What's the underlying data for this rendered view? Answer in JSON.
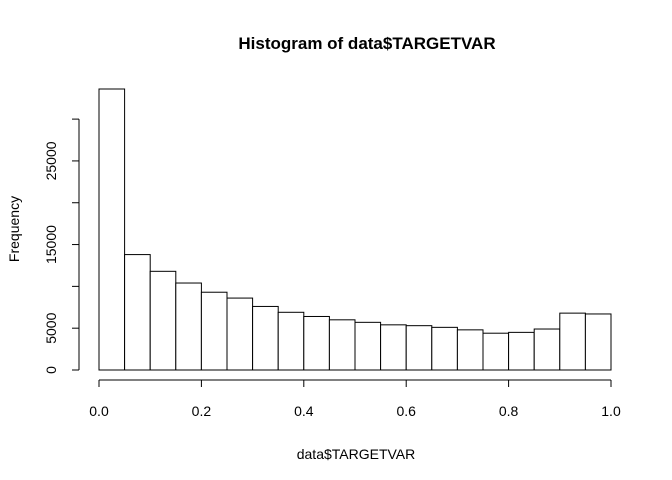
{
  "chart_data": {
    "type": "bar",
    "title": "Histogram of data$TARGETVAR",
    "xlabel": "data$TARGETVAR",
    "ylabel": "Frequency",
    "bin_width": 0.05,
    "bins": [
      {
        "x0": 0.0,
        "x1": 0.05,
        "count": 33600
      },
      {
        "x0": 0.05,
        "x1": 0.1,
        "count": 13800
      },
      {
        "x0": 0.1,
        "x1": 0.15,
        "count": 11800
      },
      {
        "x0": 0.15,
        "x1": 0.2,
        "count": 10400
      },
      {
        "x0": 0.2,
        "x1": 0.25,
        "count": 9300
      },
      {
        "x0": 0.25,
        "x1": 0.3,
        "count": 8600
      },
      {
        "x0": 0.3,
        "x1": 0.35,
        "count": 7600
      },
      {
        "x0": 0.35,
        "x1": 0.4,
        "count": 6900
      },
      {
        "x0": 0.4,
        "x1": 0.45,
        "count": 6400
      },
      {
        "x0": 0.45,
        "x1": 0.5,
        "count": 6000
      },
      {
        "x0": 0.5,
        "x1": 0.55,
        "count": 5700
      },
      {
        "x0": 0.55,
        "x1": 0.6,
        "count": 5400
      },
      {
        "x0": 0.6,
        "x1": 0.65,
        "count": 5300
      },
      {
        "x0": 0.65,
        "x1": 0.7,
        "count": 5100
      },
      {
        "x0": 0.7,
        "x1": 0.75,
        "count": 4800
      },
      {
        "x0": 0.75,
        "x1": 0.8,
        "count": 4400
      },
      {
        "x0": 0.8,
        "x1": 0.85,
        "count": 4500
      },
      {
        "x0": 0.85,
        "x1": 0.9,
        "count": 4900
      },
      {
        "x0": 0.9,
        "x1": 0.95,
        "count": 6800
      },
      {
        "x0": 0.95,
        "x1": 1.0,
        "count": 6700
      }
    ],
    "xlim": [
      0.0,
      1.0
    ],
    "ylim": [
      0,
      33600
    ],
    "x_ticks": [
      0.0,
      0.2,
      0.4,
      0.6,
      0.8,
      1.0
    ],
    "x_tick_labels": [
      "0.0",
      "0.2",
      "0.4",
      "0.6",
      "0.8",
      "1.0"
    ],
    "y_ticks": [
      0,
      5000,
      10000,
      15000,
      20000,
      25000,
      30000
    ],
    "y_tick_labels": [
      "0",
      "5000",
      "",
      "15000",
      "",
      "25000",
      ""
    ],
    "grid": false,
    "legend": "none",
    "bar_fill": "#ffffff",
    "bar_stroke": "#000000"
  }
}
